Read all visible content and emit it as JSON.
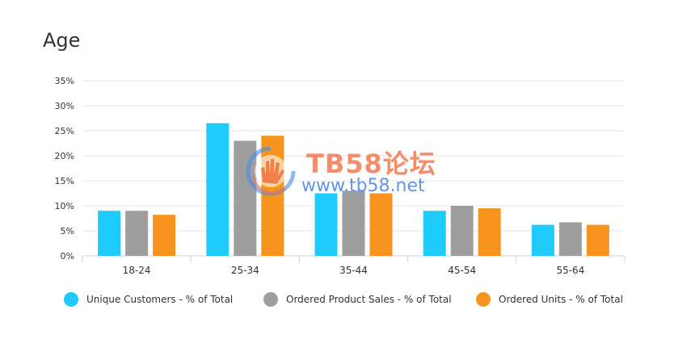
{
  "chart_data": {
    "type": "bar",
    "title": "Age",
    "xlabel": "",
    "ylabel": "",
    "ylim": [
      0,
      35
    ],
    "yticks": [
      "0%",
      "5%",
      "10%",
      "15%",
      "20%",
      "25%",
      "30%",
      "35%"
    ],
    "ytick_values": [
      0,
      5,
      10,
      15,
      20,
      25,
      30,
      35
    ],
    "grid": true,
    "legend_position": "bottom",
    "categories": [
      "18-24",
      "25-34",
      "35-44",
      "45-54",
      "55-64"
    ],
    "series": [
      {
        "name": "Unique Customers - % of Total",
        "color": "#1ecbfb",
        "values": [
          9,
          26.5,
          12.5,
          9,
          6.2
        ]
      },
      {
        "name": "Ordered Product Sales - % of Total",
        "color": "#9e9e9e",
        "values": [
          9,
          23,
          13,
          10,
          6.7
        ]
      },
      {
        "name": "Ordered Units - % of Total",
        "color": "#f7941d",
        "values": [
          8.2,
          24,
          12.5,
          9.5,
          6.2
        ]
      }
    ]
  },
  "watermark": {
    "line1": "TB58论坛",
    "line2": "www.tb58.net",
    "icon": "hand-logo-icon"
  }
}
